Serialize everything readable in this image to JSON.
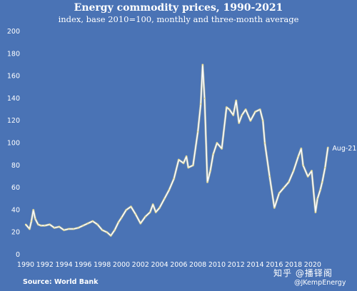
{
  "chart_data": {
    "type": "line",
    "title": "Energy commodity prices, 1990-2021",
    "subtitle": "index, base 2010=100, monthly and three-month average",
    "source": "Source: World Bank",
    "credit": "@JKempEnergy",
    "watermark": "知乎 @播铎阁",
    "end_label": "Aug-21",
    "ylim": [
      0,
      200
    ],
    "xlim": [
      1990,
      2021.8
    ],
    "y_ticks": [
      0,
      20,
      40,
      60,
      80,
      100,
      120,
      140,
      160,
      180,
      200
    ],
    "x_ticks": [
      1990,
      1992,
      1994,
      1996,
      1998,
      2000,
      2002,
      2004,
      2006,
      2008,
      2010,
      2012,
      2014,
      2016,
      2018,
      2020
    ],
    "grid": false,
    "series": [
      {
        "x": [
          1990.0,
          1990.4,
          1990.6,
          1990.8,
          1991.0,
          1991.3,
          1991.6,
          1992.0,
          1992.5,
          1993.0,
          1993.5,
          1994.0,
          1994.5,
          1995.0,
          1995.5,
          1996.0,
          1996.5,
          1997.0,
          1997.5,
          1998.0,
          1998.5,
          1998.9,
          1999.3,
          1999.7,
          2000.0,
          2000.5,
          2001.0,
          2001.5,
          2002.0,
          2002.5,
          2003.0,
          2003.3,
          2003.6,
          2004.0,
          2004.5,
          2005.0,
          2005.5,
          2006.0,
          2006.5,
          2006.8,
          2007.0,
          2007.5,
          2008.0,
          2008.3,
          2008.5,
          2008.7,
          2009.0,
          2009.3,
          2009.6,
          2010.0,
          2010.5,
          2011.0,
          2011.3,
          2011.7,
          2012.0,
          2012.3,
          2012.6,
          2013.0,
          2013.5,
          2014.0,
          2014.5,
          2014.8,
          2015.0,
          2015.5,
          2016.0,
          2016.5,
          2017.0,
          2017.5,
          2018.0,
          2018.5,
          2018.8,
          2019.0,
          2019.5,
          2019.9,
          2020.3,
          2020.5,
          2020.8,
          2021.0,
          2021.3,
          2021.6
        ],
        "values": [
          27,
          23,
          30,
          40,
          32,
          27,
          26,
          26,
          27,
          24,
          25,
          22,
          23,
          23,
          24,
          26,
          28,
          30,
          27,
          22,
          20,
          17,
          22,
          29,
          33,
          40,
          43,
          36,
          28,
          34,
          38,
          45,
          38,
          42,
          50,
          58,
          68,
          85,
          82,
          88,
          78,
          80,
          110,
          135,
          170,
          140,
          65,
          75,
          90,
          100,
          95,
          132,
          130,
          125,
          138,
          118,
          125,
          130,
          120,
          128,
          130,
          120,
          100,
          70,
          42,
          55,
          60,
          65,
          75,
          88,
          95,
          80,
          70,
          75,
          38,
          50,
          58,
          65,
          78,
          96
        ]
      }
    ]
  }
}
